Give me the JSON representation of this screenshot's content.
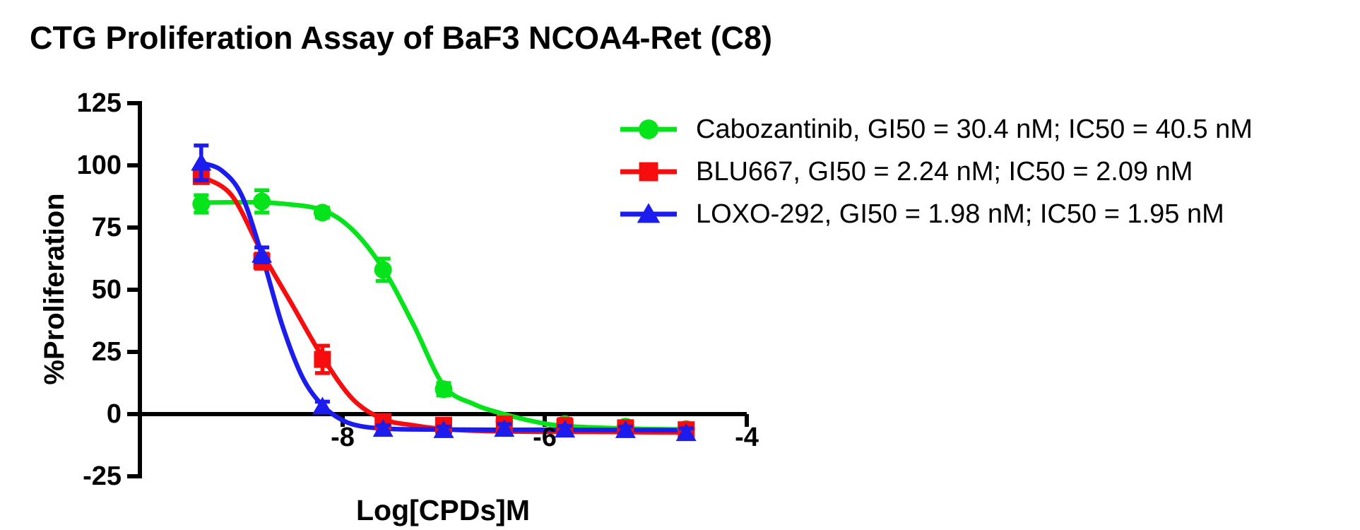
{
  "title": "CTG Proliferation Assay of BaF3 NCOA4-Ret (C8)",
  "colors": {
    "cabozantinib": "#05E31A",
    "blu667": "#F70D0E",
    "loxo292": "#1C1CEF",
    "axis": "#000000",
    "background": "#FFFFFF"
  },
  "legend": {
    "entries": [
      {
        "label": "Cabozantinib, GI50 = 30.4 nM; IC50 = 40.5 nM"
      },
      {
        "label": "BLU667, GI50 = 2.24 nM; IC50 = 2.09 nM"
      },
      {
        "label": "LOXO-292, GI50 = 1.98 nM; IC50 = 1.95 nM"
      }
    ]
  },
  "chart_data": {
    "type": "line",
    "title": "CTG Proliferation Assay of BaF3 NCOA4-Ret (C8)",
    "xlabel": "Log[CPDs]M",
    "ylabel": "%Proliferation",
    "xlim": [
      -10,
      -4
    ],
    "ylim": [
      -25,
      125
    ],
    "x_ticks": [
      -8,
      -6,
      -4
    ],
    "y_ticks": [
      125,
      100,
      75,
      50,
      25,
      0,
      -25
    ],
    "grid": false,
    "legend_position": "upper right, outside plot",
    "x": [
      -9.4,
      -8.8,
      -8.2,
      -7.6,
      -7.0,
      -6.4,
      -5.8,
      -5.2,
      -4.6
    ],
    "series": [
      {
        "name": "Cabozantinib",
        "gi50_nM": 30.4,
        "ic50_nM": 40.5,
        "marker": "circle",
        "color_key": "cabozantinib",
        "values": [
          84.5,
          85.5,
          81,
          58,
          10,
          -2.8,
          -4,
          -5,
          -6
        ],
        "errors": [
          3.5,
          4.5,
          2,
          4.5,
          2.5,
          2,
          1.5,
          1.5,
          1.5
        ],
        "fit_curve": [
          [
            -9.4,
            85
          ],
          [
            -9.0,
            85.2
          ],
          [
            -8.6,
            84.6
          ],
          [
            -8.2,
            82
          ],
          [
            -7.9,
            74
          ],
          [
            -7.6,
            58.5
          ],
          [
            -7.3,
            36
          ],
          [
            -7.0,
            11.5
          ],
          [
            -6.7,
            4
          ],
          [
            -6.4,
            0
          ],
          [
            -6.1,
            -3
          ],
          [
            -5.8,
            -4.8
          ],
          [
            -5.2,
            -5.8
          ],
          [
            -4.6,
            -6.2
          ]
        ]
      },
      {
        "name": "BLU667",
        "gi50_nM": 2.24,
        "ic50_nM": 2.09,
        "marker": "square",
        "color_key": "blu667",
        "values": [
          95.5,
          61.5,
          22,
          -3,
          -4.5,
          -4,
          -5,
          -5.5,
          -6.3
        ],
        "errors": [
          2.5,
          3,
          5.5,
          2,
          2,
          2,
          3,
          2.5,
          2.5
        ],
        "fit_curve": [
          [
            -9.4,
            95.5
          ],
          [
            -9.1,
            88
          ],
          [
            -8.8,
            65
          ],
          [
            -8.5,
            44
          ],
          [
            -8.2,
            23
          ],
          [
            -7.9,
            6
          ],
          [
            -7.6,
            -2
          ],
          [
            -7.3,
            -4.5
          ],
          [
            -7.0,
            -6
          ],
          [
            -6.6,
            -6.8
          ],
          [
            -6.0,
            -7.1
          ],
          [
            -5.4,
            -7.2
          ],
          [
            -4.6,
            -7.4
          ]
        ]
      },
      {
        "name": "LOXO-292",
        "gi50_nM": 1.98,
        "ic50_nM": 1.95,
        "marker": "triangle",
        "color_key": "loxo292",
        "values": [
          101,
          64,
          3,
          -6,
          -6.5,
          -6,
          -6.3,
          -6.5,
          -7.7
        ],
        "errors": [
          7,
          3,
          2,
          1.5,
          1.5,
          2,
          1.5,
          1.5,
          2
        ],
        "fit_curve": [
          [
            -9.4,
            101
          ],
          [
            -9.2,
            98
          ],
          [
            -9.0,
            88
          ],
          [
            -8.8,
            64
          ],
          [
            -8.6,
            36
          ],
          [
            -8.4,
            15
          ],
          [
            -8.2,
            3.5
          ],
          [
            -8.0,
            -2.5
          ],
          [
            -7.8,
            -5
          ],
          [
            -7.5,
            -6
          ],
          [
            -7.0,
            -6.2
          ],
          [
            -6.4,
            -6.3
          ],
          [
            -5.8,
            -6.3
          ],
          [
            -5.2,
            -6.4
          ],
          [
            -4.6,
            -6.5
          ]
        ]
      }
    ]
  }
}
